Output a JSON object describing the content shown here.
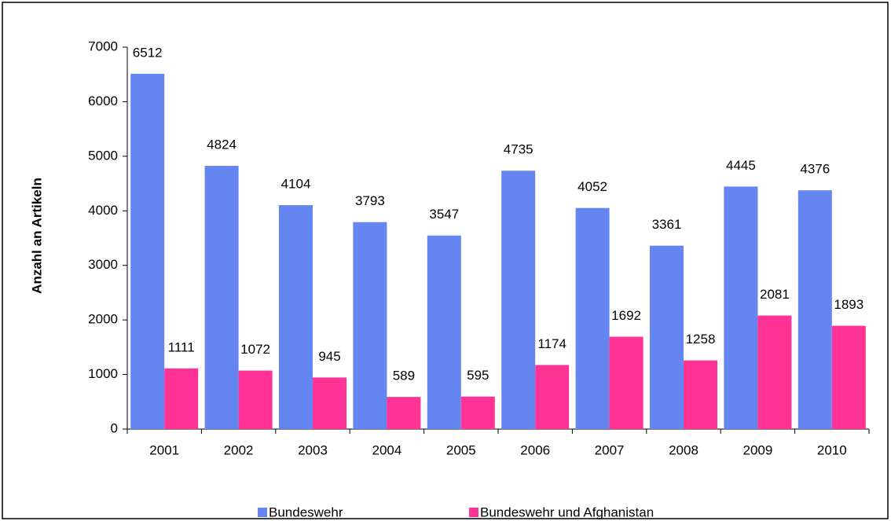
{
  "chart_data": {
    "type": "bar",
    "y_label": "Anzahl an Artikeln",
    "categories": [
      "2001",
      "2002",
      "2003",
      "2004",
      "2005",
      "2006",
      "2007",
      "2008",
      "2009",
      "2010"
    ],
    "series": [
      {
        "name": "Bundeswehr",
        "color": "#6585f0",
        "values": [
          6512,
          4824,
          4104,
          3793,
          3547,
          4735,
          4052,
          3361,
          4445,
          4376
        ]
      },
      {
        "name": "Bundeswehr und Afghanistan",
        "color": "#ff3396",
        "values": [
          1111,
          1072,
          945,
          589,
          595,
          1174,
          1692,
          1258,
          2081,
          1893
        ]
      }
    ],
    "ylim": [
      0,
      7000
    ],
    "yticks": [
      0,
      1000,
      2000,
      3000,
      4000,
      5000,
      6000,
      7000
    ],
    "legend": "bottom"
  }
}
